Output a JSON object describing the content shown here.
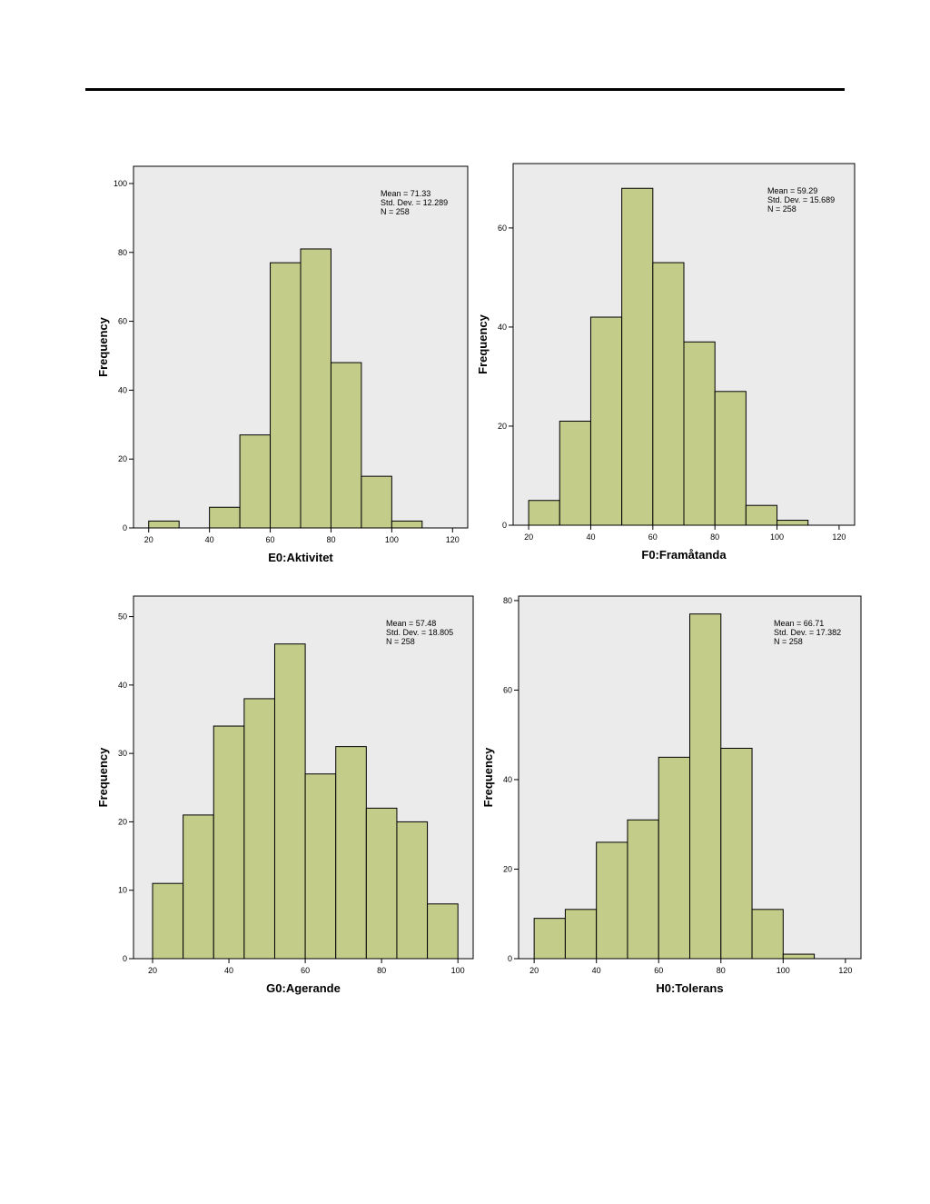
{
  "chart_data": [
    {
      "type": "bar",
      "title": "",
      "xlabel": "E0:Aktivitet",
      "ylabel": "Frequency",
      "bin_edges": [
        20,
        30,
        40,
        50,
        60,
        70,
        80,
        90,
        100,
        110
      ],
      "values": [
        2,
        0,
        6,
        27,
        77,
        81,
        48,
        15,
        2
      ],
      "xlim": [
        15,
        125
      ],
      "ylim": [
        0,
        105
      ],
      "xticks": [
        20,
        40,
        60,
        80,
        100,
        120
      ],
      "yticks": [
        0,
        20,
        40,
        60,
        80,
        100
      ],
      "stats": {
        "mean": "Mean = 71.33",
        "std": "Std. Dev. = 12.289",
        "n": "N = 258"
      }
    },
    {
      "type": "bar",
      "title": "",
      "xlabel": "F0:Framåtanda",
      "ylabel": "Frequency",
      "bin_edges": [
        20,
        30,
        40,
        50,
        60,
        70,
        80,
        90,
        100,
        110,
        120
      ],
      "values": [
        5,
        21,
        42,
        68,
        53,
        37,
        27,
        4,
        1,
        0
      ],
      "xlim": [
        15,
        125
      ],
      "ylim": [
        0,
        73
      ],
      "xticks": [
        20,
        40,
        60,
        80,
        100,
        120
      ],
      "yticks": [
        0,
        20,
        40,
        60
      ],
      "stats": {
        "mean": "Mean = 59.29",
        "std": "Std. Dev. = 15.689",
        "n": "N = 258"
      }
    },
    {
      "type": "bar",
      "title": "",
      "xlabel": "G0:Agerande",
      "ylabel": "Frequency",
      "bin_edges": [
        20,
        28,
        36,
        44,
        52,
        60,
        68,
        76,
        84,
        92,
        100
      ],
      "values": [
        11,
        21,
        34,
        38,
        46,
        27,
        31,
        22,
        20,
        8
      ],
      "xlim": [
        15,
        104
      ],
      "ylim": [
        0,
        53
      ],
      "xticks": [
        20,
        40,
        60,
        80,
        100
      ],
      "yticks": [
        0,
        10,
        20,
        30,
        40,
        50
      ],
      "stats": {
        "mean": "Mean = 57.48",
        "std": "Std. Dev. = 18.805",
        "n": "N = 258"
      }
    },
    {
      "type": "bar",
      "title": "",
      "xlabel": "H0:Tolerans",
      "ylabel": "Frequency",
      "bin_edges": [
        20,
        30,
        40,
        50,
        60,
        70,
        80,
        90,
        100,
        110
      ],
      "values": [
        9,
        11,
        26,
        31,
        45,
        77,
        47,
        11,
        1
      ],
      "xlim": [
        15,
        125
      ],
      "ylim": [
        0,
        81
      ],
      "xticks": [
        20,
        40,
        60,
        80,
        100,
        120
      ],
      "yticks": [
        0,
        20,
        40,
        60,
        80
      ],
      "stats": {
        "mean": "Mean = 66.71",
        "std": "Std. Dev. = 17.382",
        "n": "N = 258"
      }
    }
  ]
}
